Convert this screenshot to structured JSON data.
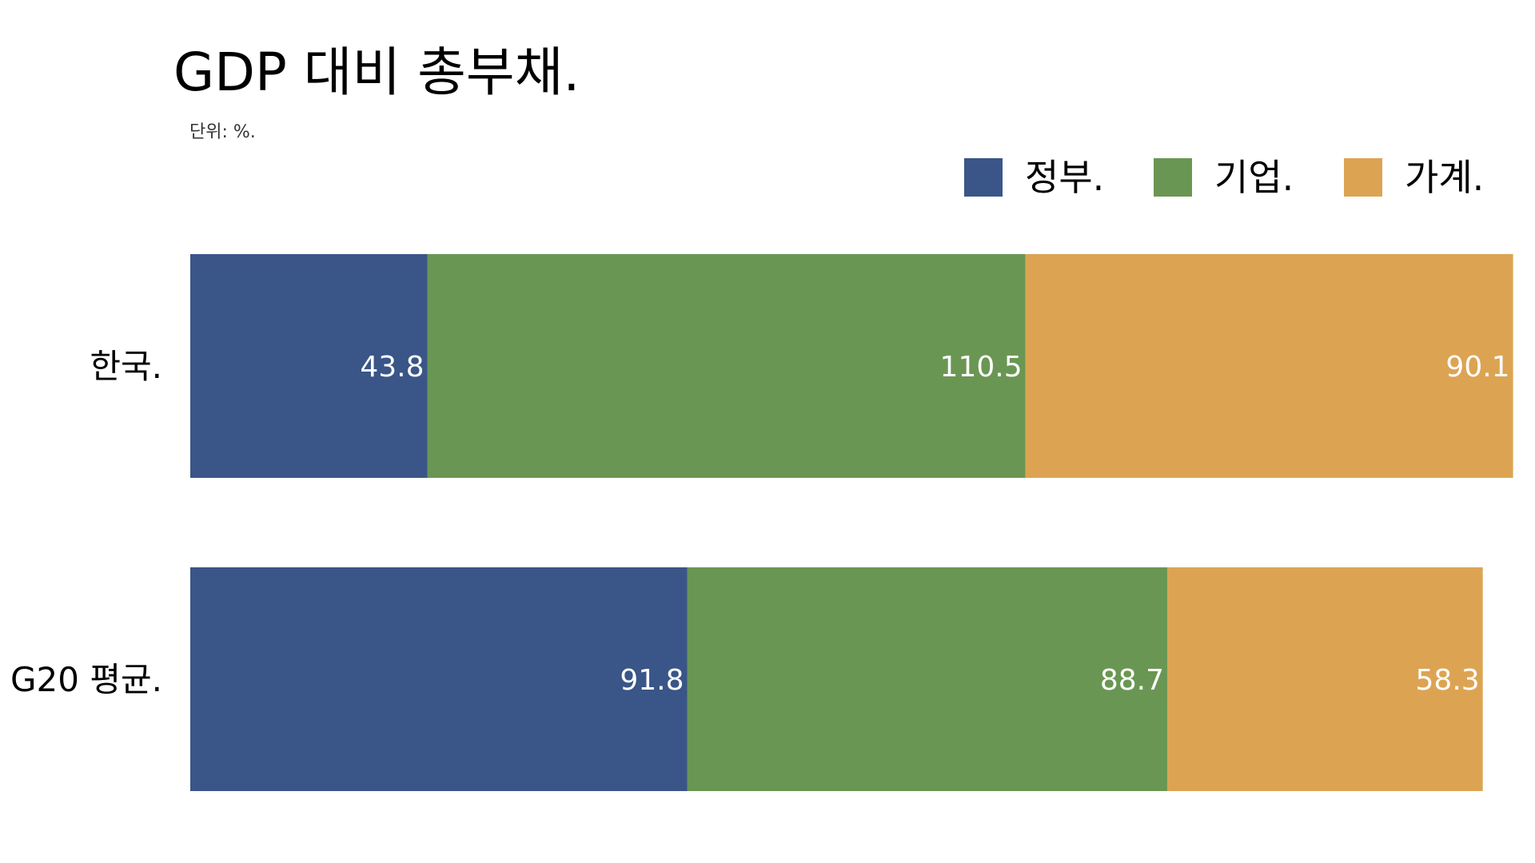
{
  "chart_data": {
    "type": "bar",
    "orientation": "horizontal",
    "stacked": true,
    "title": "GDP 대비 총부채.",
    "subtitle": "단위: %.",
    "xlabel": "",
    "ylabel": "",
    "grid": false,
    "legend_position": "top-right",
    "categories": [
      "한국.",
      "G20 평균."
    ],
    "series": [
      {
        "name": "정부.",
        "color": "#3a5587",
        "values": [
          43.8,
          91.8
        ]
      },
      {
        "name": "기업.",
        "color": "#6a9653",
        "values": [
          110.5,
          88.7
        ]
      },
      {
        "name": "가계.",
        "color": "#dca452",
        "values": [
          90.1,
          58.3
        ]
      }
    ]
  }
}
